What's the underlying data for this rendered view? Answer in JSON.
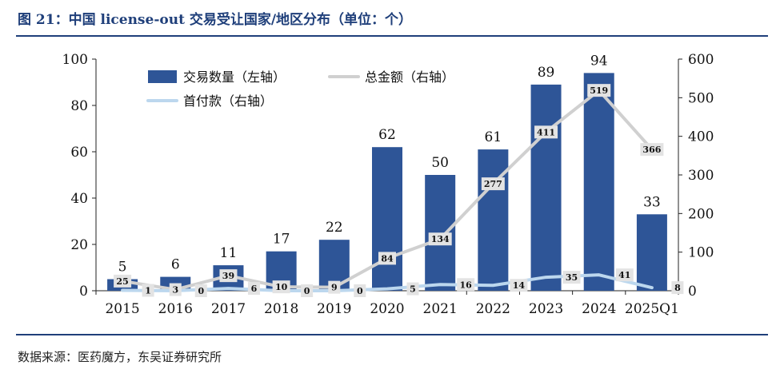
{
  "header": {
    "title": "图 21：中国 license-out 交易受让国家/地区分布（单位：个）"
  },
  "footer": {
    "source": "数据来源：医药魔方，东吴证券研究所"
  },
  "colors": {
    "bar": "#2e5597",
    "total": "#d0d0d0",
    "upfront": "#bcd7ee",
    "title": "#1f3f7a",
    "label_box": "#e3e3e3"
  },
  "chart_data": {
    "type": "bar",
    "categories": [
      "2015",
      "2016",
      "2017",
      "2018",
      "2019",
      "2020",
      "2021",
      "2022",
      "2023",
      "2024",
      "2025Q1"
    ],
    "y_left": {
      "ylim": [
        0,
        100
      ],
      "ticks": [
        "0",
        "20",
        "40",
        "60",
        "80",
        "100"
      ]
    },
    "y_right": {
      "ylim": [
        0,
        600
      ],
      "ticks": [
        "0",
        "100",
        "200",
        "300",
        "400",
        "500",
        "600"
      ]
    },
    "legend_position": "top-left",
    "series": [
      {
        "name": "交易数量（左轴）",
        "type": "bar",
        "axis": "left",
        "values": [
          5,
          6,
          11,
          17,
          22,
          62,
          50,
          61,
          89,
          94,
          33
        ]
      },
      {
        "name": "总金额（右轴）",
        "type": "line",
        "axis": "right",
        "values": [
          25,
          3,
          39,
          10,
          9,
          84,
          134,
          277,
          411,
          519,
          366
        ]
      },
      {
        "name": "首付款（右轴）",
        "type": "line",
        "axis": "right",
        "values": [
          1,
          0,
          6,
          0,
          0,
          5,
          16,
          14,
          35,
          41,
          8
        ]
      }
    ]
  }
}
